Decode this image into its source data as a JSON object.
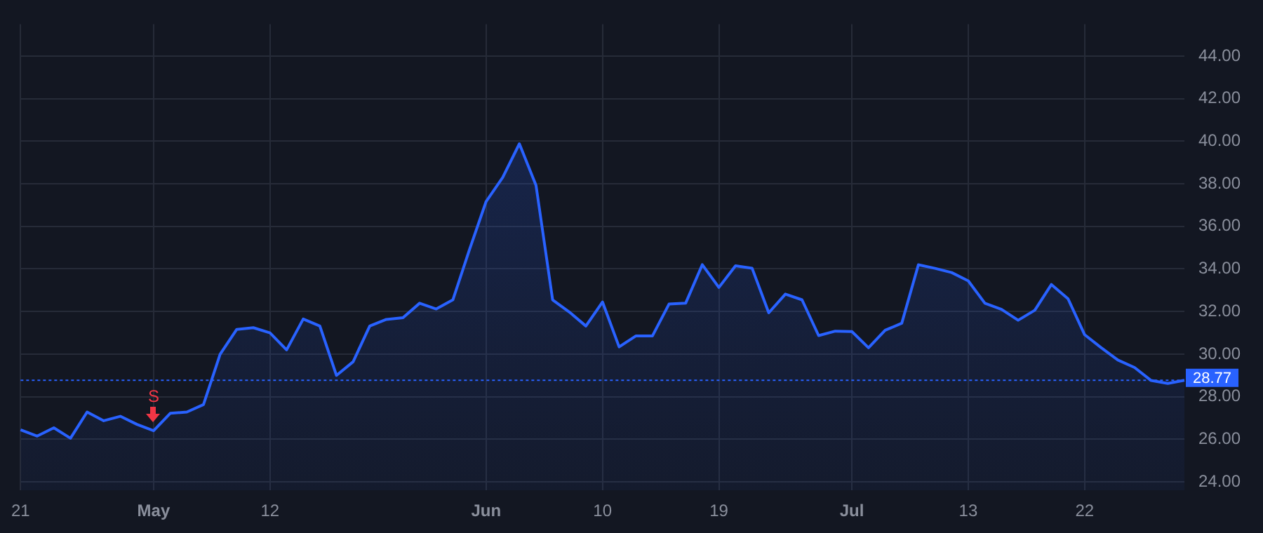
{
  "chart_data": {
    "type": "area",
    "categories": [
      "21",
      null,
      null,
      null,
      null,
      null,
      null,
      null,
      "May",
      null,
      null,
      null,
      null,
      null,
      null,
      "12",
      null,
      null,
      null,
      null,
      null,
      null,
      null,
      null,
      null,
      null,
      null,
      null,
      "Jun",
      null,
      null,
      null,
      null,
      null,
      null,
      "10",
      null,
      null,
      null,
      null,
      null,
      null,
      "19",
      null,
      null,
      null,
      null,
      null,
      null,
      null,
      "Jul",
      null,
      null,
      null,
      null,
      null,
      null,
      "13",
      null,
      null,
      null,
      null,
      null,
      null,
      "22",
      null,
      null,
      null,
      null,
      null,
      null
    ],
    "series": [
      {
        "color": "#2962ff",
        "values": [
          26.44,
          26.15,
          26.54,
          26.05,
          27.28,
          26.87,
          27.08,
          26.7,
          26.4,
          27.22,
          27.28,
          27.63,
          29.99,
          31.16,
          31.24,
          31.0,
          30.2,
          31.65,
          31.32,
          29.0,
          29.64,
          31.32,
          31.63,
          31.71,
          32.39,
          32.12,
          32.55,
          34.91,
          37.17,
          38.3,
          39.88,
          37.93,
          32.55,
          31.98,
          31.32,
          32.45,
          30.34,
          30.85,
          30.85,
          32.35,
          32.39,
          34.2,
          33.13,
          34.15,
          34.03,
          31.94,
          32.82,
          32.55,
          30.87,
          31.08,
          31.06,
          30.3,
          31.12,
          31.45,
          34.2,
          34.03,
          33.83,
          33.44,
          32.39,
          32.1,
          31.59,
          32.06,
          33.27,
          32.6,
          30.91,
          30.3,
          29.72,
          29.37,
          28.76,
          28.62,
          28.77
        ]
      }
    ],
    "ylim": [
      23.6,
      45.5
    ],
    "yticks": [
      {
        "value": 24,
        "label": "24.00"
      },
      {
        "value": 26,
        "label": "26.00"
      },
      {
        "value": 28,
        "label": "28.00"
      },
      {
        "value": 30,
        "label": "30.00"
      },
      {
        "value": 32,
        "label": "32.00"
      },
      {
        "value": 34,
        "label": "34.00"
      },
      {
        "value": 36,
        "label": "36.00"
      },
      {
        "value": 38,
        "label": "38.00"
      },
      {
        "value": 40,
        "label": "40.00"
      },
      {
        "value": 42,
        "label": "42.00"
      },
      {
        "value": 44,
        "label": "44.00"
      }
    ],
    "ref_lines": [
      {
        "axis": "y",
        "value": 28.77,
        "label": "28.77",
        "color": "#2962ff",
        "line_style": "dotted"
      }
    ],
    "annotations": [
      {
        "text": "S",
        "x": "May",
        "y": 26.4
      }
    ],
    "grid": true,
    "legend": false,
    "marker": "none"
  }
}
